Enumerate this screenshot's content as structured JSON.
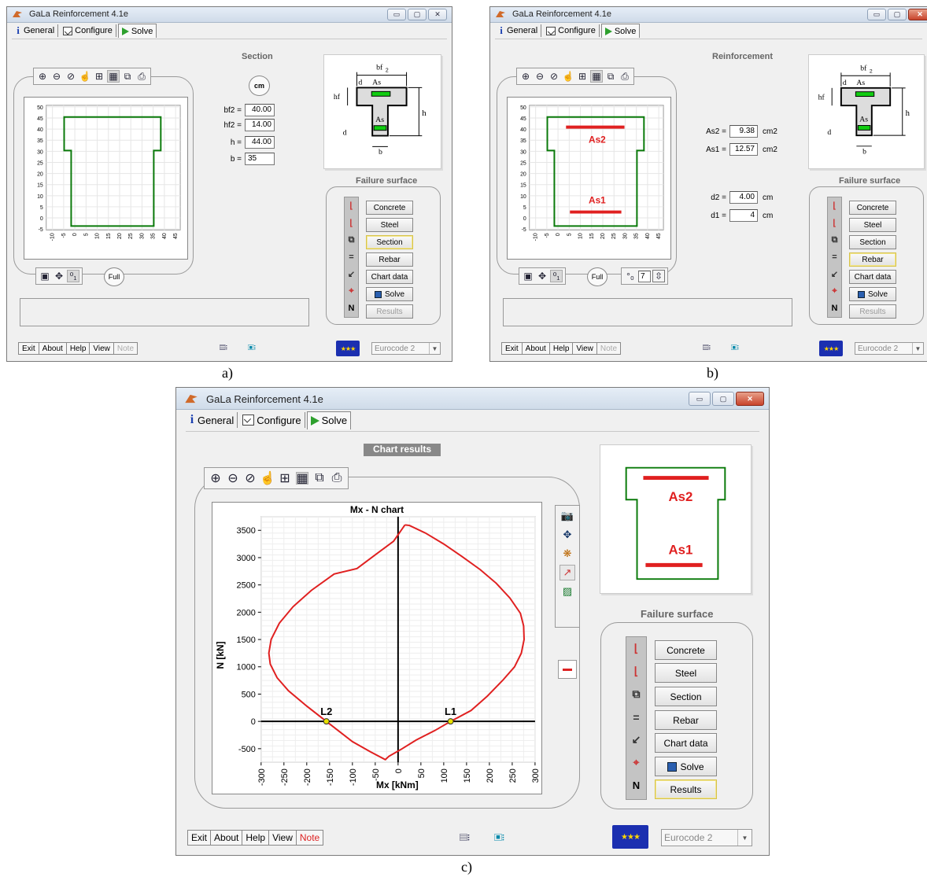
{
  "app": {
    "title": "GaLa Reinforcement  4.1e",
    "tabs": {
      "general": "General",
      "configure": "Configure",
      "solve": "Solve"
    },
    "window_buttons": {
      "min": "▭",
      "max": "▢",
      "close": "✕"
    }
  },
  "panel_a": {
    "caption": "a)",
    "subtitle": "Section",
    "unit_button": "cm",
    "fields": [
      {
        "label": "bf2 =",
        "value": "40.00"
      },
      {
        "label": "hf2 =",
        "value": "14.00"
      },
      {
        "label": "h =",
        "value": "44.00"
      },
      {
        "label": "b =",
        "value": "35"
      }
    ],
    "y_ticks": [
      "50",
      "45",
      "40",
      "35",
      "30",
      "25",
      "20",
      "15",
      "10",
      "5",
      "0",
      "-5"
    ],
    "x_ticks": [
      "-10",
      "-5",
      "0",
      "5",
      "10",
      "15",
      "20",
      "25",
      "30",
      "35",
      "40",
      "45"
    ],
    "full_button": "Full"
  },
  "panel_b": {
    "caption": "b)",
    "subtitle": "Reinforcement",
    "fields_as": [
      {
        "label": "As2 =",
        "value": "9.38",
        "unit": "cm2"
      },
      {
        "label": "As1 =",
        "value": "12.57",
        "unit": "cm2"
      }
    ],
    "fields_d": [
      {
        "label": "d2 =",
        "value": "4.00",
        "unit": "cm"
      },
      {
        "label": "d1 =",
        "value": "4",
        "unit": "cm"
      }
    ],
    "as2_label": "As2",
    "as1_label": "As1",
    "y_ticks": [
      "50",
      "45",
      "40",
      "35",
      "30",
      "25",
      "20",
      "15",
      "10",
      "5",
      "0",
      "-5"
    ],
    "x_ticks": [
      "-10",
      "-5",
      "0",
      "5",
      "10",
      "15",
      "20",
      "25",
      "30",
      "35",
      "40",
      "45"
    ],
    "full_button": "Full",
    "spin_value": "7"
  },
  "panel_c": {
    "caption": "c)",
    "subtitle": "Chart results",
    "as2_label": "As2",
    "as1_label": "As1"
  },
  "sketch": {
    "bf2": "bf",
    "sub2": "2",
    "d2": "d",
    "as2": "As",
    "hf": "hf",
    "h": "h",
    "as1": "As",
    "sub1": "1",
    "d1": "d",
    "b": "b"
  },
  "failure_surface": {
    "title": "Failure surface",
    "buttons": {
      "concrete": "Concrete",
      "steel": "Steel",
      "section": "Section",
      "rebar": "Rebar",
      "chart_data": "Chart data",
      "solve": "Solve",
      "results": "Results"
    },
    "strip_N": "N"
  },
  "bottom": {
    "exit": "Exit",
    "about": "About",
    "help": "Help",
    "view": "View",
    "note": "Note",
    "code": "Eurocode 2"
  },
  "chart_data": {
    "type": "line",
    "title": "Mx - N   chart",
    "xlabel": "Mx [kNm]",
    "ylabel": "N [kN]",
    "xlim": [
      -300,
      300
    ],
    "ylim": [
      -750,
      3750
    ],
    "x_ticks": [
      -300,
      -250,
      -200,
      -150,
      -100,
      -50,
      0,
      50,
      100,
      150,
      200,
      250,
      300
    ],
    "y_ticks": [
      -500,
      0,
      500,
      1000,
      1500,
      2000,
      2500,
      3000,
      3500
    ],
    "series": [
      {
        "color": "#e02020",
        "x": [
          15,
          25,
          60,
          100,
          140,
          180,
          215,
          245,
          268,
          275,
          276,
          270,
          255,
          230,
          195,
          160,
          115,
          80,
          40,
          5,
          -20,
          -28,
          -60,
          -100,
          -157,
          -200,
          -240,
          -265,
          -280,
          -283,
          -278,
          -260,
          -230,
          -190,
          -140,
          -90,
          -50,
          -10,
          15
        ],
        "y": [
          3600,
          3590,
          3450,
          3250,
          3020,
          2780,
          2530,
          2260,
          1980,
          1750,
          1500,
          1250,
          1000,
          760,
          460,
          200,
          0,
          -170,
          -340,
          -520,
          -640,
          -700,
          -560,
          -370,
          0,
          280,
          560,
          800,
          1050,
          1250,
          1500,
          1800,
          2100,
          2400,
          2700,
          2800,
          3050,
          3300,
          3600
        ]
      }
    ],
    "points": [
      {
        "label": "L2",
        "x": -157,
        "y": 0
      },
      {
        "label": "L1",
        "x": 115,
        "y": 0
      }
    ],
    "grid": true
  }
}
